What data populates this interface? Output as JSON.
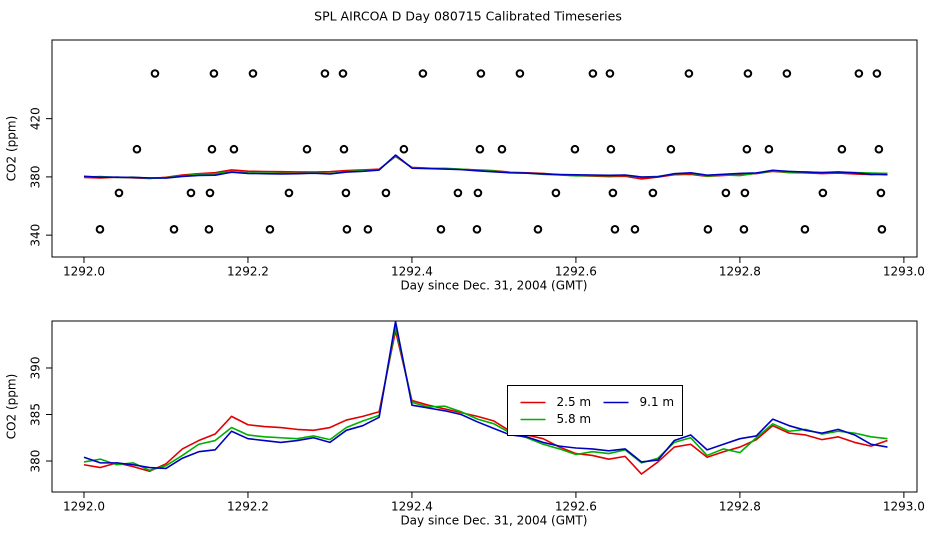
{
  "chart_data": [
    {
      "type": "scatter",
      "title": "SPL AIRCOA D  Day 080715  Calibrated Timeseries",
      "xlabel": "Day since Dec. 31, 2004 (GMT)",
      "ylabel": "CO2 (ppm)",
      "xlim": [
        1291.961,
        1293.016
      ],
      "xticks": [
        {
          "value": 1292,
          "label": "1292.0"
        },
        1292.2,
        1292.4,
        1292.6,
        1292.8,
        {
          "value": 1293,
          "label": "1293.0"
        }
      ],
      "ylim": [
        325,
        474
      ],
      "yticks": [
        340,
        380,
        420
      ],
      "x": [
        1292.0,
        1292.02,
        1292.04,
        1292.06,
        1292.08,
        1292.1,
        1292.12,
        1292.14,
        1292.16,
        1292.18,
        1292.2,
        1292.22,
        1292.24,
        1292.26,
        1292.28,
        1292.3,
        1292.32,
        1292.34,
        1292.36,
        1292.38,
        1292.4,
        1292.42,
        1292.44,
        1292.46,
        1292.48,
        1292.5,
        1292.52,
        1292.54,
        1292.56,
        1292.58,
        1292.6,
        1292.62,
        1292.64,
        1292.66,
        1292.68,
        1292.7,
        1292.72,
        1292.74,
        1292.76,
        1292.78,
        1292.8,
        1292.82,
        1292.84,
        1292.86,
        1292.88,
        1292.9,
        1292.92,
        1292.94,
        1292.96,
        1292.98
      ],
      "series": [
        {
          "mode": "markers",
          "color": "#000000",
          "x": [
            1292.0866,
            1292.1585,
            1292.2061,
            1292.2939,
            1292.3159,
            1292.4134,
            1292.4841,
            1292.5317,
            1292.6207,
            1292.6415,
            1292.7378,
            1292.8098,
            1292.8573,
            1292.9451,
            1292.9671,
            1292.0646,
            1292.1561,
            1292.1829,
            1292.272,
            1292.3171,
            1292.3902,
            1292.4829,
            1292.5098,
            1292.5988,
            1292.6427,
            1292.7159,
            1292.8085,
            1292.8354,
            1292.9244,
            1292.9695,
            1292.0427,
            1292.1305,
            1292.1537,
            1292.25,
            1292.3195,
            1292.3683,
            1292.4561,
            1292.4805,
            1292.5756,
            1292.6451,
            1292.6939,
            1292.7829,
            1292.8061,
            1292.9012,
            1292.972,
            1292.0195,
            1292.1098,
            1292.1524,
            1292.2268,
            1292.3207,
            1292.3463,
            1292.4354,
            1292.4793,
            1292.5537,
            1292.6476,
            1292.672,
            1292.761,
            1292.8049,
            1292.8793,
            1292.9732
          ],
          "values": [
            451,
            451,
            451,
            451,
            451,
            451,
            451,
            451,
            451,
            451,
            451,
            451,
            451,
            451,
            451,
            399,
            399,
            399,
            399,
            399,
            399,
            399,
            399,
            399,
            399,
            399,
            399,
            399,
            399,
            399,
            369,
            369,
            369,
            369,
            369,
            369,
            369,
            369,
            369,
            369,
            369,
            369,
            369,
            369,
            369,
            344,
            344,
            344,
            344,
            344,
            344,
            344,
            344,
            344,
            344,
            344,
            344,
            344,
            344,
            344
          ]
        },
        {
          "mode": "lines",
          "color": "#e00000",
          "values": [
            379.6,
            379.3,
            379.8,
            379.4,
            378.9,
            379.7,
            381.3,
            382.2,
            382.9,
            384.8,
            383.9,
            383.7,
            383.6,
            383.4,
            383.3,
            383.6,
            384.4,
            384.8,
            385.3,
            394.0,
            386.5,
            386.0,
            385.6,
            385.2,
            384.8,
            384.3,
            383.2,
            382.8,
            382.4,
            381.5,
            380.8,
            380.6,
            380.2,
            380.5,
            378.6,
            379.9,
            381.5,
            381.8,
            380.4,
            381.0,
            381.5,
            382.3,
            383.8,
            383.0,
            382.8,
            382.3,
            382.6,
            382.0,
            381.6,
            382.2
          ]
        },
        {
          "mode": "lines",
          "color": "#00b000",
          "values": [
            379.9,
            380.2,
            379.6,
            379.8,
            379.0,
            379.5,
            380.6,
            381.8,
            382.2,
            383.6,
            382.8,
            382.6,
            382.5,
            382.4,
            382.7,
            382.3,
            383.6,
            384.3,
            384.9,
            394.5,
            386.3,
            385.8,
            385.9,
            385.3,
            384.5,
            384.0,
            383.0,
            382.5,
            381.8,
            381.3,
            380.7,
            381.0,
            380.8,
            381.2,
            379.8,
            380.3,
            382.0,
            382.5,
            380.6,
            381.3,
            380.9,
            382.5,
            384.0,
            383.2,
            383.4,
            382.9,
            383.2,
            383.0,
            382.6,
            382.4
          ]
        },
        {
          "mode": "lines",
          "color": "#0000c0",
          "values": [
            380.4,
            379.8,
            379.8,
            379.6,
            379.3,
            379.2,
            380.3,
            381.0,
            381.2,
            383.2,
            382.4,
            382.2,
            382.0,
            382.2,
            382.5,
            382.0,
            383.3,
            383.8,
            384.7,
            395.0,
            386.0,
            385.7,
            385.4,
            385.0,
            384.2,
            383.5,
            382.8,
            382.6,
            382.0,
            381.6,
            381.4,
            381.3,
            381.1,
            381.3,
            379.9,
            380.1,
            382.2,
            382.8,
            381.2,
            381.8,
            382.4,
            382.7,
            384.5,
            383.8,
            383.3,
            383.0,
            383.4,
            382.8,
            381.8,
            381.5
          ]
        }
      ]
    },
    {
      "type": "line",
      "xlabel": "Day since Dec. 31, 2004 (GMT)",
      "ylabel": "CO2 (ppm)",
      "xlim": [
        1291.961,
        1293.016
      ],
      "xticks": [
        {
          "value": 1292,
          "label": "1292.0"
        },
        1292.2,
        1292.4,
        1292.6,
        1292.8,
        {
          "value": 1293,
          "label": "1293.0"
        }
      ],
      "ylim": [
        376.67,
        395.05
      ],
      "yticks": [
        380,
        385,
        390
      ],
      "legend": "center",
      "x": [
        1292.0,
        1292.02,
        1292.04,
        1292.06,
        1292.08,
        1292.1,
        1292.12,
        1292.14,
        1292.16,
        1292.18,
        1292.2,
        1292.22,
        1292.24,
        1292.26,
        1292.28,
        1292.3,
        1292.32,
        1292.34,
        1292.36,
        1292.38,
        1292.4,
        1292.42,
        1292.44,
        1292.46,
        1292.48,
        1292.5,
        1292.52,
        1292.54,
        1292.56,
        1292.58,
        1292.6,
        1292.62,
        1292.64,
        1292.66,
        1292.68,
        1292.7,
        1292.72,
        1292.74,
        1292.76,
        1292.78,
        1292.8,
        1292.82,
        1292.84,
        1292.86,
        1292.88,
        1292.9,
        1292.92,
        1292.94,
        1292.96,
        1292.98
      ],
      "series": [
        {
          "name": "2.5 m",
          "mode": "lines",
          "color": "#e00000",
          "values": [
            379.6,
            379.3,
            379.8,
            379.4,
            378.9,
            379.7,
            381.3,
            382.2,
            382.9,
            384.8,
            383.9,
            383.7,
            383.6,
            383.4,
            383.3,
            383.6,
            384.4,
            384.8,
            385.3,
            394.0,
            386.5,
            386.0,
            385.6,
            385.2,
            384.8,
            384.3,
            383.2,
            382.8,
            382.4,
            381.5,
            380.8,
            380.6,
            380.2,
            380.5,
            378.6,
            379.9,
            381.5,
            381.8,
            380.4,
            381.0,
            381.5,
            382.3,
            383.8,
            383.0,
            382.8,
            382.3,
            382.6,
            382.0,
            381.6,
            382.2
          ]
        },
        {
          "name": "5.8 m",
          "mode": "lines",
          "color": "#00b000",
          "values": [
            379.9,
            380.2,
            379.6,
            379.8,
            379.0,
            379.5,
            380.6,
            381.8,
            382.2,
            383.6,
            382.8,
            382.6,
            382.5,
            382.4,
            382.7,
            382.3,
            383.6,
            384.3,
            384.9,
            394.5,
            386.3,
            385.8,
            385.9,
            385.3,
            384.5,
            384.0,
            383.0,
            382.5,
            381.8,
            381.3,
            380.7,
            381.0,
            380.8,
            381.2,
            379.8,
            380.3,
            382.0,
            382.5,
            380.6,
            381.3,
            380.9,
            382.5,
            384.0,
            383.2,
            383.4,
            382.9,
            383.2,
            383.0,
            382.6,
            382.4
          ]
        },
        {
          "name": "9.1 m",
          "mode": "lines",
          "color": "#0000c0",
          "values": [
            380.4,
            379.8,
            379.8,
            379.6,
            379.3,
            379.2,
            380.3,
            381.0,
            381.2,
            383.2,
            382.4,
            382.2,
            382.0,
            382.2,
            382.5,
            382.0,
            383.3,
            383.8,
            384.7,
            395.0,
            386.0,
            385.7,
            385.4,
            385.0,
            384.2,
            383.5,
            382.8,
            382.6,
            382.0,
            381.6,
            381.4,
            381.3,
            381.1,
            381.3,
            379.9,
            380.1,
            382.2,
            382.8,
            381.2,
            381.8,
            382.4,
            382.7,
            384.5,
            383.8,
            383.3,
            383.0,
            383.4,
            382.8,
            381.8,
            381.5
          ]
        }
      ]
    }
  ]
}
